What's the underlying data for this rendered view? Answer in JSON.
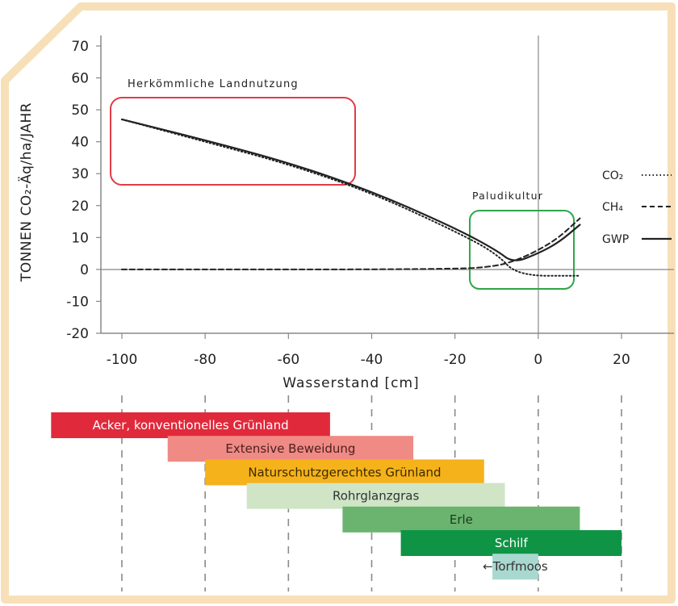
{
  "chart_data": {
    "type": "line",
    "ylabel": "TONNEN CO₂-Äq/ha/JAHR",
    "xlabel": "Wasserstand [cm]",
    "xlim": [
      -100,
      30
    ],
    "ylim": [
      -20,
      70
    ],
    "x_ticks": [
      "-100",
      "-80",
      "-60",
      "-40",
      "-20",
      "0",
      "20"
    ],
    "y_ticks": [
      "70",
      "60",
      "50",
      "40",
      "30",
      "20",
      "10",
      "0",
      "-10",
      "-20"
    ],
    "annotations": {
      "conventional": "Herkömmliche Landnutzung",
      "paludi": "Paludikultur"
    },
    "series": [
      {
        "name": "CO₂",
        "style": "dotted",
        "x": [
          -100,
          -80,
          -60,
          -40,
          -20,
          -10,
          -5,
          10
        ],
        "y": [
          47,
          40,
          33,
          24,
          12,
          5,
          -2,
          -2
        ]
      },
      {
        "name": "CH₄",
        "style": "dashed",
        "x": [
          -100,
          -20,
          -10,
          -5,
          0,
          5,
          10
        ],
        "y": [
          0,
          0,
          1,
          3,
          6,
          10,
          16
        ]
      },
      {
        "name": "GWP",
        "style": "solid",
        "x": [
          -100,
          -80,
          -60,
          -40,
          -20,
          -10,
          -6,
          0,
          5,
          10
        ],
        "y": [
          47,
          40.5,
          33.5,
          24.5,
          13,
          6,
          2,
          5,
          8.5,
          14
        ]
      }
    ],
    "land_use": [
      {
        "label": "Acker, konventionelles Grünland",
        "from": -117,
        "to": -50,
        "color": "#e02a3c",
        "text_color": "#ffffff"
      },
      {
        "label": "Extensive Beweidung",
        "from": -89,
        "to": -30,
        "color": "#f08a84",
        "text_color": "#4a2020"
      },
      {
        "label": "Naturschutzgerechtes Grünland",
        "from": -80,
        "to": -13,
        "color": "#f5b21a",
        "text_color": "#3a2a00"
      },
      {
        "label": "Rohrglanzgras",
        "from": -70,
        "to": -8,
        "color": "#cfe5c6",
        "text_color": "#333333"
      },
      {
        "label": "Erle",
        "from": -47,
        "to": 10,
        "color": "#6ab46f",
        "text_color": "#1d3a1d"
      },
      {
        "label": "Schilf",
        "from": -33,
        "to": 20,
        "color": "#0f9445",
        "text_color": "#ffffff"
      },
      {
        "label": "←Torfmoos",
        "from": -11,
        "to": 0,
        "color": "#a8d8cf",
        "text_color": "#333333"
      }
    ]
  }
}
